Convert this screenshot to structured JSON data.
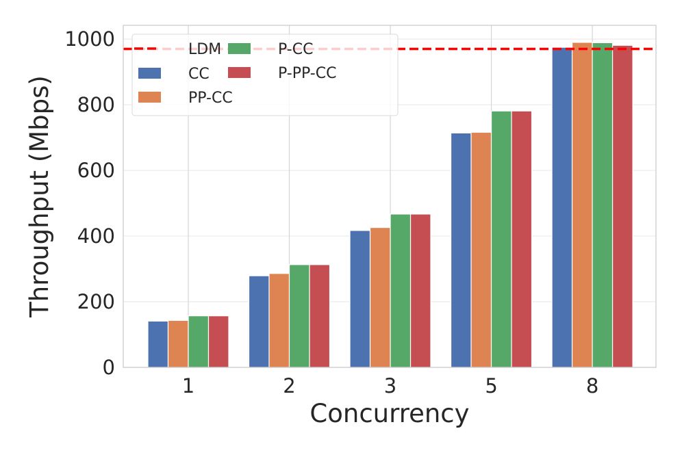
{
  "chart_data": {
    "type": "bar",
    "title": "",
    "xlabel": "Concurrency",
    "ylabel": "Throughput (Mbps)",
    "categories": [
      "1",
      "2",
      "3",
      "5",
      "8"
    ],
    "ylim": [
      0,
      1042
    ],
    "yticks": [
      "0",
      "200",
      "400",
      "600",
      "800",
      "1000"
    ],
    "ytick_values": [
      0,
      200,
      400,
      600,
      800,
      1000
    ],
    "grid": true,
    "legend_position": "top-left",
    "series": [
      {
        "name": "CC",
        "color": "#4c72b0",
        "values": [
          141,
          279,
          417,
          714,
          975
        ]
      },
      {
        "name": "PP-CC",
        "color": "#dd8452",
        "values": [
          143,
          286,
          426,
          716,
          990
        ]
      },
      {
        "name": "P-CC",
        "color": "#55a868",
        "values": [
          157,
          313,
          467,
          781,
          989
        ]
      },
      {
        "name": "P-PP-CC",
        "color": "#c44e52",
        "values": [
          157,
          313,
          467,
          781,
          981
        ]
      }
    ],
    "reference_line": {
      "name": "LDM",
      "value": 970,
      "color": "#ff0000",
      "style": "dashed"
    }
  }
}
